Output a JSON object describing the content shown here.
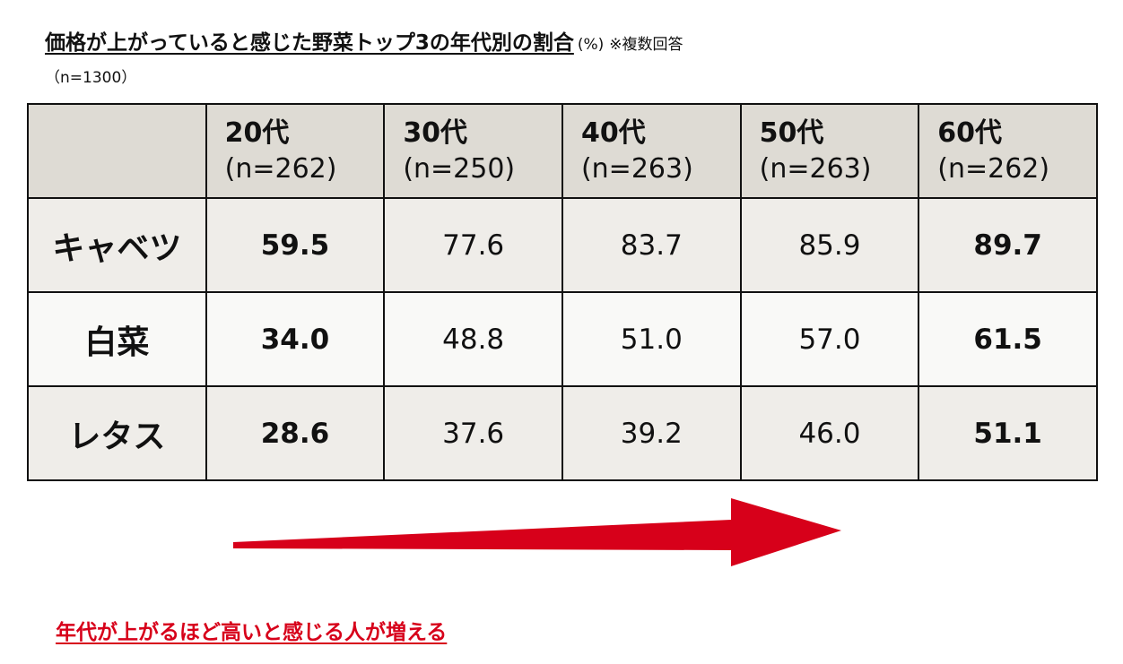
{
  "header": {
    "title": "価格が上がっていると感じた野菜トップ3の年代別の割合",
    "unit": "(%)",
    "note": "※複数回答",
    "sample": "（n=1300）"
  },
  "table": {
    "columns": [
      {
        "age": "20代",
        "n": "(n=262)"
      },
      {
        "age": "30代",
        "n": "(n=250)"
      },
      {
        "age": "40代",
        "n": "(n=263)"
      },
      {
        "age": "50代",
        "n": "(n=263)"
      },
      {
        "age": "60代",
        "n": "(n=262)"
      }
    ],
    "rows": [
      {
        "label": "キャベツ",
        "values": [
          "59.5",
          "77.6",
          "83.7",
          "85.9",
          "89.7"
        ]
      },
      {
        "label": "白菜",
        "values": [
          "34.0",
          "48.8",
          "51.0",
          "57.0",
          "61.5"
        ]
      },
      {
        "label": "レタス",
        "values": [
          "28.6",
          "37.6",
          "39.2",
          "46.0",
          "51.1"
        ]
      }
    ]
  },
  "footer": "年代が上がるほど高いと感じる人が増える"
}
